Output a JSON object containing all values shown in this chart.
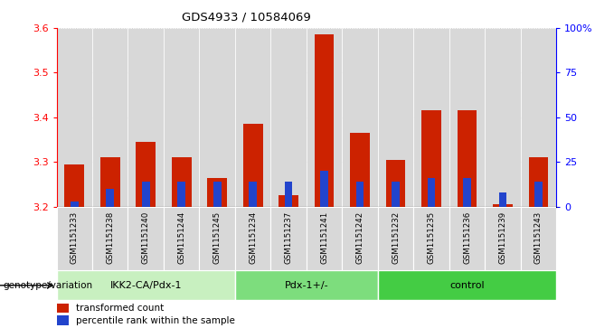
{
  "title": "GDS4933 / 10584069",
  "samples": [
    "GSM1151233",
    "GSM1151238",
    "GSM1151240",
    "GSM1151244",
    "GSM1151245",
    "GSM1151234",
    "GSM1151237",
    "GSM1151241",
    "GSM1151242",
    "GSM1151232",
    "GSM1151235",
    "GSM1151236",
    "GSM1151239",
    "GSM1151243"
  ],
  "red_values": [
    3.295,
    3.31,
    3.345,
    3.31,
    3.265,
    3.385,
    3.225,
    3.585,
    3.365,
    3.305,
    3.415,
    3.415,
    3.205,
    3.31
  ],
  "blue_percentiles": [
    3,
    10,
    14,
    14,
    14,
    14,
    14,
    20,
    14,
    14,
    16,
    16,
    8,
    14
  ],
  "groups": [
    {
      "label": "IKK2-CA/Pdx-1",
      "start": 0,
      "end": 5,
      "color": "#c8f0c0"
    },
    {
      "label": "Pdx-1+/-",
      "start": 5,
      "end": 9,
      "color": "#7ddd7d"
    },
    {
      "label": "control",
      "start": 9,
      "end": 14,
      "color": "#44cc44"
    }
  ],
  "ylim_left": [
    3.2,
    3.6
  ],
  "ylim_right": [
    0,
    100
  ],
  "yticks_left": [
    3.2,
    3.3,
    3.4,
    3.5,
    3.6
  ],
  "yticks_right": [
    0,
    25,
    50,
    75,
    100
  ],
  "bar_color_red": "#cc2200",
  "bar_color_blue": "#2244cc",
  "cell_bg": "#d8d8d8",
  "label_transformed": "transformed count",
  "label_percentile": "percentile rank within the sample",
  "genotype_label": "genotype/variation"
}
